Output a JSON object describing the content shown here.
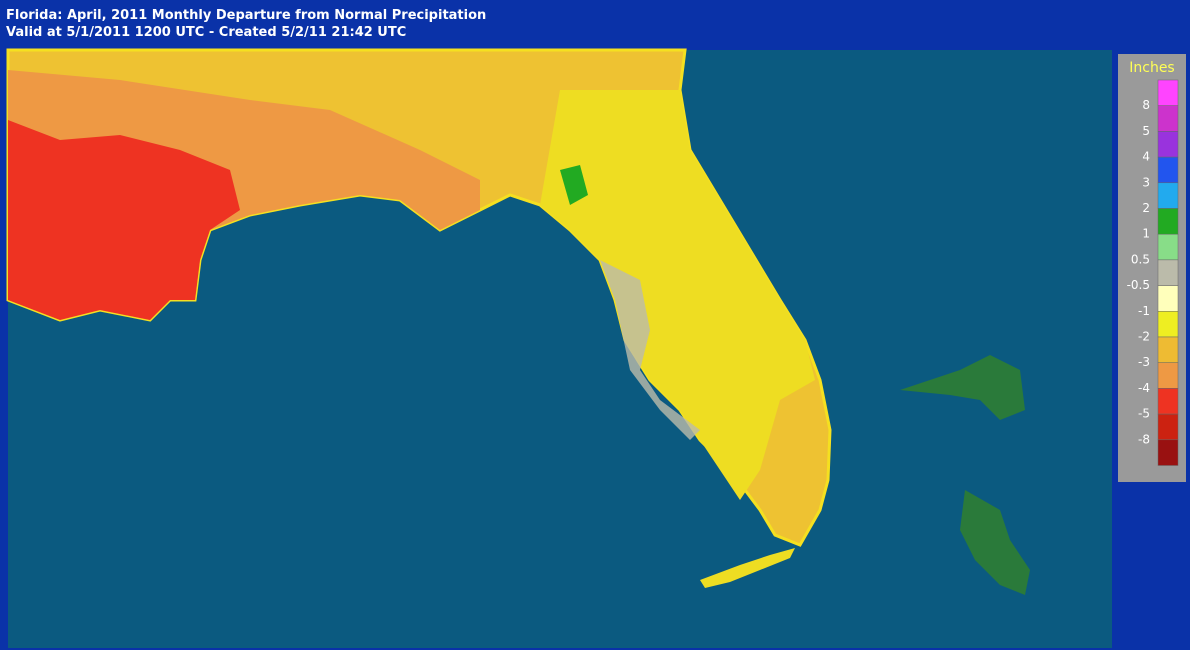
{
  "header": {
    "title": "Florida: April, 2011 Monthly Departure from Normal Precipitation",
    "subtitle": "Valid at 5/1/2011 1200 UTC - Created 5/2/11 21:42 UTC"
  },
  "legend": {
    "title": "Inches",
    "labels": [
      8,
      5,
      4,
      3,
      2,
      1,
      0.5,
      -0.5,
      -1,
      -2,
      -3,
      -4,
      -5,
      -8
    ],
    "colors": [
      "#ff44ff",
      "#cc33cc",
      "#9933dd",
      "#2255ee",
      "#22aaee",
      "#22aa22",
      "#88dd88",
      "#bbbbaa",
      "#ffffbb",
      "#eeee22",
      "#eebb33",
      "#ee9944",
      "#ee3322",
      "#cc2211",
      "#991111"
    ]
  }
}
